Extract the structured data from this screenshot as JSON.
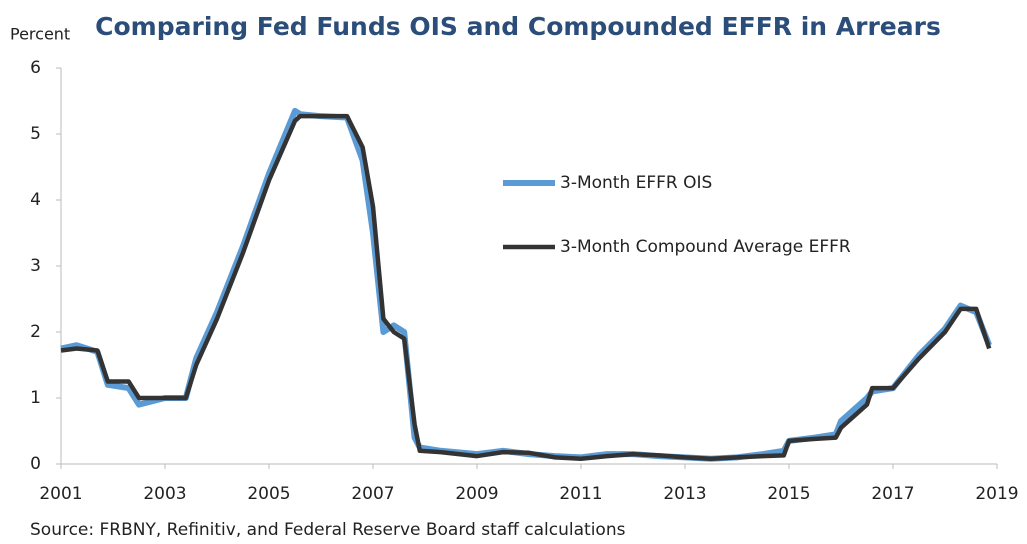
{
  "chart_data": {
    "type": "line",
    "title": "Comparing Fed Funds OIS and Compounded EFFR in Arrears",
    "y_label": "Percent",
    "source": "Source:  FRBNY, Refinitiv, and Federal Reserve Board staff calculations",
    "x": [
      2001.0,
      2001.3,
      2001.7,
      2001.9,
      2002.3,
      2002.5,
      2003.0,
      2003.4,
      2003.6,
      2004.0,
      2004.5,
      2005.0,
      2005.5,
      2005.6,
      2006.0,
      2006.5,
      2006.8,
      2007.0,
      2007.2,
      2007.4,
      2007.6,
      2007.8,
      2007.9,
      2008.3,
      2009.0,
      2009.5,
      2010.0,
      2010.5,
      2011.0,
      2011.5,
      2012.0,
      2012.5,
      2013.0,
      2013.5,
      2014.0,
      2014.5,
      2014.9,
      2015.0,
      2015.5,
      2015.9,
      2016.0,
      2016.5,
      2016.6,
      2017.0,
      2017.5,
      2018.0,
      2018.3,
      2018.6,
      2018.85
    ],
    "series": [
      {
        "name": "3-Month EFFR OIS",
        "color": "#5b9bd5",
        "values": [
          1.75,
          1.8,
          1.7,
          1.2,
          1.15,
          0.9,
          1.0,
          1.0,
          1.6,
          2.3,
          3.3,
          4.4,
          5.35,
          5.3,
          5.27,
          5.25,
          4.6,
          3.5,
          2.0,
          2.1,
          2.0,
          0.4,
          0.25,
          0.2,
          0.15,
          0.2,
          0.15,
          0.12,
          0.1,
          0.15,
          0.15,
          0.12,
          0.1,
          0.08,
          0.1,
          0.15,
          0.2,
          0.35,
          0.4,
          0.45,
          0.65,
          1.0,
          1.1,
          1.15,
          1.65,
          2.05,
          2.4,
          2.3,
          1.8
        ]
      },
      {
        "name": "3-Month Compound Average EFFR",
        "color": "#333333",
        "values": [
          1.72,
          1.75,
          1.72,
          1.25,
          1.25,
          1.0,
          1.0,
          1.0,
          1.5,
          2.2,
          3.2,
          4.3,
          5.2,
          5.27,
          5.27,
          5.27,
          4.8,
          3.9,
          2.2,
          2.0,
          1.9,
          0.6,
          0.2,
          0.18,
          0.12,
          0.18,
          0.17,
          0.1,
          0.08,
          0.12,
          0.15,
          0.13,
          0.1,
          0.08,
          0.1,
          0.12,
          0.13,
          0.35,
          0.38,
          0.4,
          0.55,
          0.9,
          1.15,
          1.15,
          1.6,
          2.0,
          2.35,
          2.35,
          1.75
        ]
      }
    ],
    "xlim": [
      2001,
      2019
    ],
    "xticks": [
      2001,
      2003,
      2005,
      2007,
      2009,
      2011,
      2013,
      2015,
      2017,
      2019
    ],
    "ylim": [
      0,
      6
    ],
    "yticks": [
      0,
      1,
      2,
      3,
      4,
      5,
      6
    ],
    "grid": false
  }
}
